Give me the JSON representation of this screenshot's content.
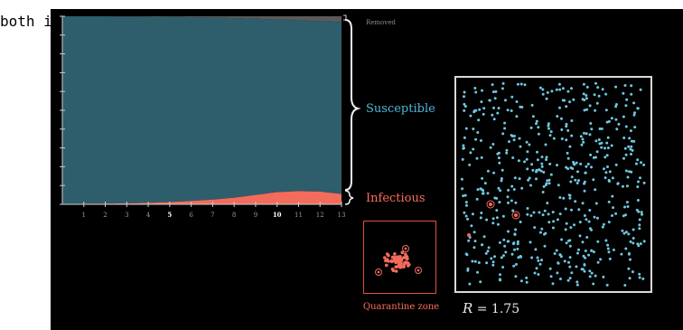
{
  "caption": "both in numbers and in people)",
  "chart": {
    "layers": {
      "removed": "Removed",
      "susceptible": "Susceptible",
      "infectious": "Infectious"
    },
    "x_ticks": [
      "1",
      "2",
      "3",
      "4",
      "5",
      "6",
      "7",
      "8",
      "9",
      "10",
      "11",
      "12",
      "13"
    ],
    "bold_ticks": [
      "5",
      "10"
    ],
    "colors": {
      "susceptible": "#2e5d6b",
      "infectious": "#f26b5b",
      "removed": "#5a5a5a",
      "text_susceptible": "#4fb8d8",
      "text_infectious": "#ff6e5a"
    }
  },
  "chart_data": {
    "type": "area",
    "x": [
      0,
      1,
      2,
      3,
      4,
      5,
      6,
      7,
      8,
      9,
      10,
      11,
      12,
      13
    ],
    "series": [
      {
        "name": "Infectious",
        "values": [
          0.002,
          0.003,
          0.004,
          0.005,
          0.008,
          0.012,
          0.018,
          0.025,
          0.035,
          0.05,
          0.065,
          0.07,
          0.068,
          0.055
        ]
      },
      {
        "name": "Removed",
        "values": [
          0.0,
          0.0,
          0.0,
          0.001,
          0.002,
          0.003,
          0.005,
          0.007,
          0.01,
          0.013,
          0.017,
          0.021,
          0.026,
          0.03
        ]
      }
    ],
    "ylim": [
      0,
      1
    ]
  },
  "quarantine": {
    "label": "Quarantine zone"
  },
  "simulation": {
    "r_symbol": "R",
    "r_value": "= 1.75",
    "dot_color": "#6fc7e0",
    "infected_color": "#f26b5b"
  }
}
